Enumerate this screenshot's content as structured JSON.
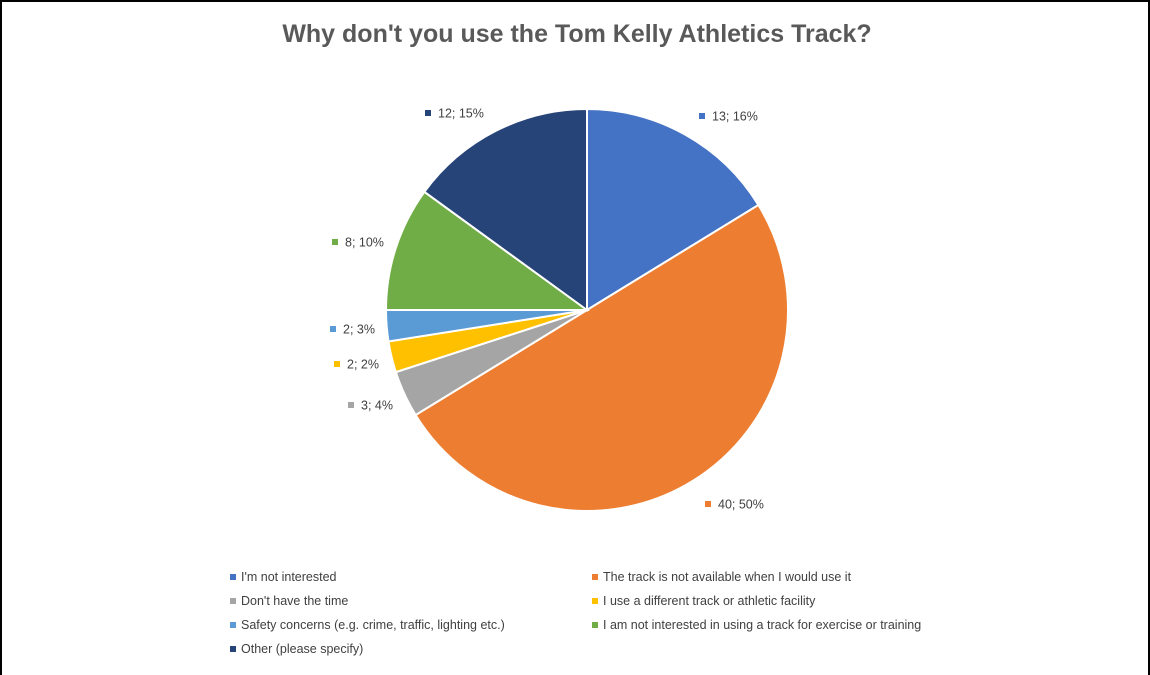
{
  "chart_data": {
    "type": "pie",
    "title": "Why don't you use the Tom Kelly Athletics Track?",
    "slices": [
      {
        "name": "I'm not interested",
        "value": 13,
        "percent": "16%",
        "label": "13; 16%",
        "color": "#4472C4"
      },
      {
        "name": "The track is not available when I would use it",
        "value": 40,
        "percent": "50%",
        "label": "40; 50%",
        "color": "#ED7D31"
      },
      {
        "name": "Don't have the time",
        "value": 3,
        "percent": "4%",
        "label": "3; 4%",
        "color": "#A5A5A5"
      },
      {
        "name": "I use a different track or athletic facility",
        "value": 2,
        "percent": "2%",
        "label": "2; 2%",
        "color": "#FFC000"
      },
      {
        "name": "Safety concerns (e.g. crime, traffic, lighting etc.)",
        "value": 2,
        "percent": "3%",
        "label": "2; 3%",
        "color": "#5B9BD5"
      },
      {
        "name": "I am not interested in using a track for exercise or training",
        "value": 8,
        "percent": "10%",
        "label": "8; 10%",
        "color": "#70AD47"
      },
      {
        "name": "Other (please specify)",
        "value": 12,
        "percent": "15%",
        "label": "12; 15%",
        "color": "#264478"
      }
    ],
    "legend_position": "bottom"
  }
}
